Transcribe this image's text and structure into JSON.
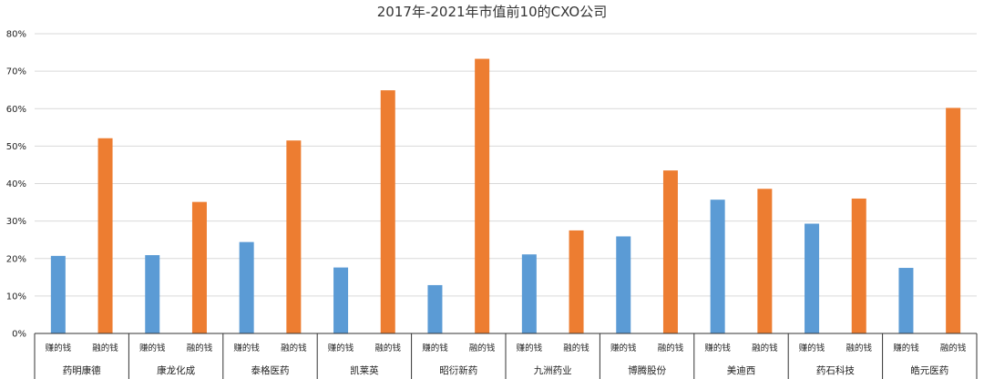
{
  "chart_data": {
    "type": "bar",
    "title": "2017年-2021年市值前10的CXO公司",
    "ylim": [
      0,
      80
    ],
    "yticks": [
      0,
      10,
      20,
      30,
      40,
      50,
      60,
      70,
      80
    ],
    "ytick_labels": [
      "0%",
      "10%",
      "20%",
      "30%",
      "40%",
      "50%",
      "60%",
      "70%",
      "80%"
    ],
    "grid": true,
    "legend": "none",
    "subcategories": [
      "赚的钱",
      "融的钱"
    ],
    "series_colors": [
      "#5b9bd5",
      "#ed7d31"
    ],
    "groups": [
      {
        "name": "药明康德",
        "values": [
          20.7,
          52.1
        ]
      },
      {
        "name": "康龙化成",
        "values": [
          20.9,
          35.1
        ]
      },
      {
        "name": "泰格医药",
        "values": [
          24.4,
          51.5
        ]
      },
      {
        "name": "凯莱英",
        "values": [
          17.6,
          64.9
        ]
      },
      {
        "name": "昭衍新药",
        "values": [
          12.9,
          73.3
        ]
      },
      {
        "name": "九洲药业",
        "values": [
          21.1,
          27.5
        ]
      },
      {
        "name": "博腾股份",
        "values": [
          25.9,
          43.5
        ]
      },
      {
        "name": "美迪西",
        "values": [
          35.7,
          38.6
        ]
      },
      {
        "name": "药石科技",
        "values": [
          29.3,
          36.0
        ]
      },
      {
        "name": "皓元医药",
        "values": [
          17.5,
          60.2
        ]
      }
    ]
  }
}
